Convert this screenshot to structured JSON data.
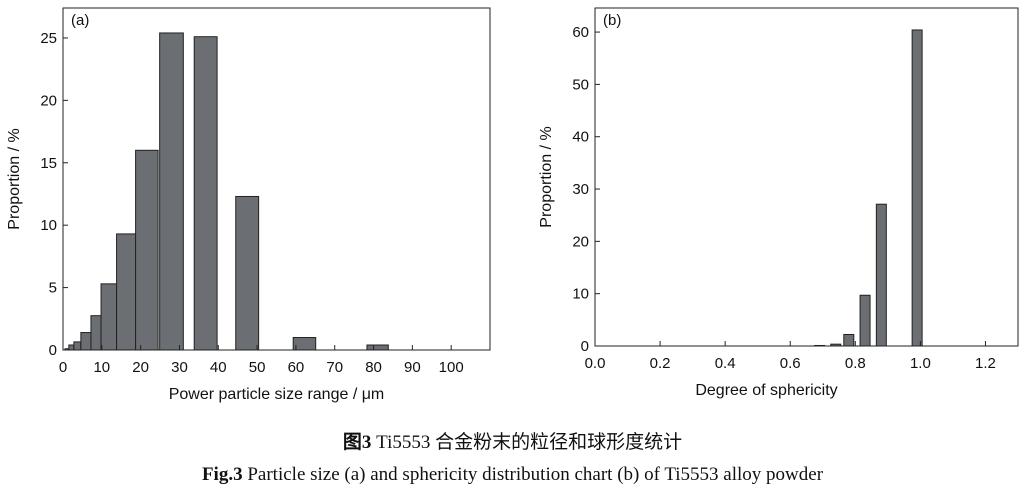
{
  "chart_data": [
    {
      "type": "bar",
      "panel_label": "(a)",
      "xlabel": "Power particle size range / μm",
      "ylabel": "Proportion / %",
      "xlim": [
        0,
        110
      ],
      "ylim": [
        0,
        27.4
      ],
      "xticks": [
        0,
        10,
        20,
        30,
        40,
        50,
        60,
        70,
        80,
        90,
        100
      ],
      "yticks": [
        0,
        5,
        10,
        15,
        20,
        25
      ],
      "bars": [
        [
          0.5,
          1.5,
          0.1
        ],
        [
          1.5,
          2.8,
          0.4
        ],
        [
          2.8,
          4.6,
          0.65
        ],
        [
          4.6,
          7.2,
          1.4
        ],
        [
          7.2,
          9.8,
          2.75
        ],
        [
          9.8,
          13.8,
          5.3
        ],
        [
          13.8,
          18.7,
          9.3
        ],
        [
          18.7,
          24.5,
          16.0
        ],
        [
          24.9,
          31.0,
          25.4
        ],
        [
          33.8,
          39.7,
          25.1
        ],
        [
          44.5,
          50.4,
          12.3
        ],
        [
          59.3,
          65.1,
          1.0
        ],
        [
          78.3,
          83.8,
          0.4
        ]
      ],
      "bar_color": "#6b6e72"
    },
    {
      "type": "bar",
      "panel_label": "(b)",
      "xlabel": "Degree of sphericity",
      "ylabel": "Proportion / %",
      "xlim": [
        0,
        1.3
      ],
      "ylim": [
        0,
        64.6
      ],
      "xticks": [
        "0.0",
        "0.2",
        "0.4",
        "0.6",
        "0.8",
        "1.0",
        "1.2"
      ],
      "yticks": [
        0,
        10,
        20,
        30,
        40,
        50,
        60
      ],
      "x": [
        0.69,
        0.74,
        0.78,
        0.83,
        0.88,
        0.99
      ],
      "values": [
        0.1,
        0.35,
        2.2,
        9.7,
        27.1,
        60.4
      ],
      "bar_color": "#6b6e72"
    }
  ],
  "caption": {
    "cn_label": "图3",
    "cn_text": " Ti5553 合金粉末的粒径和球形度统计",
    "en_label": "Fig.3",
    "en_text": " Particle size (a) and sphericity distribution chart (b) of Ti5553 alloy powder"
  }
}
